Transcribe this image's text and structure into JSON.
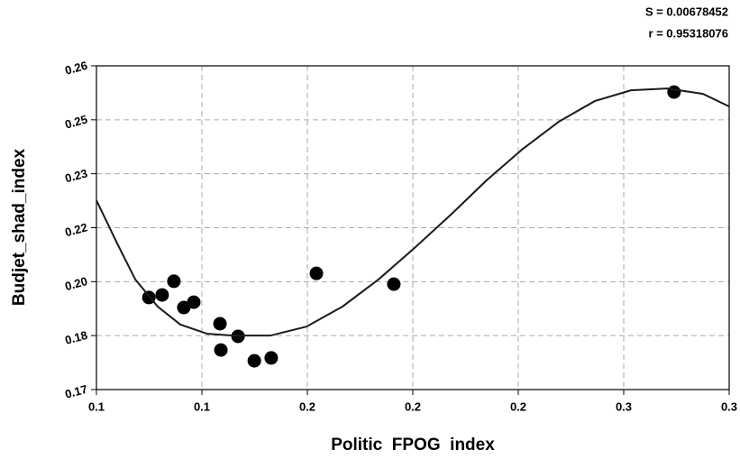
{
  "chart_data": {
    "type": "scatter",
    "xlabel": "Politic  FPOG  index",
    "ylabel": "Budjet_shad_index",
    "annotations": [
      "S = 0.00678452",
      "r = 0.95318076"
    ],
    "xlim": [
      0.1,
      0.31
    ],
    "ylim": [
      0.17,
      0.26
    ],
    "xticks": [
      0.1,
      {
        "value": 0.135,
        "label": "0.1"
      },
      {
        "value": 0.17,
        "label": "0.2"
      },
      {
        "value": 0.205,
        "label": "0.2"
      },
      {
        "value": 0.24,
        "label": "0.2"
      },
      {
        "value": 0.275,
        "label": "0.3"
      },
      {
        "value": 0.31,
        "label": "0.3"
      }
    ],
    "yticks": [
      {
        "value": 0.17,
        "label": "0.17"
      },
      {
        "value": 0.185,
        "label": "0.18"
      },
      {
        "value": 0.2,
        "label": "0.20"
      },
      {
        "value": 0.215,
        "label": "0.22"
      },
      {
        "value": 0.23,
        "label": "0.23"
      },
      {
        "value": 0.245,
        "label": "0.25"
      },
      {
        "value": 0.26,
        "label": "0.26"
      }
    ],
    "grid": true,
    "series": [
      {
        "color": "#000000",
        "style": "markers",
        "x": [
          0.1174,
          0.1218,
          0.1257,
          0.129,
          0.1323,
          0.141,
          0.1413,
          0.147,
          0.1524,
          0.158,
          0.173,
          0.1987,
          0.2917
        ],
        "values": [
          0.1956,
          0.1963,
          0.2001,
          0.1928,
          0.1943,
          0.1883,
          0.181,
          0.1848,
          0.178,
          0.1788,
          0.2023,
          0.1993,
          0.2527
        ]
      },
      {
        "color": "#1a1a1a",
        "style": "line",
        "x": [
          0.1,
          0.1069,
          0.1129,
          0.1203,
          0.1278,
          0.1368,
          0.1458,
          0.1577,
          0.1697,
          0.1817,
          0.1936,
          0.2056,
          0.2176,
          0.2295,
          0.2415,
          0.2535,
          0.2654,
          0.2774,
          0.2894,
          0.3013,
          0.31
        ],
        "values": [
          0.2226,
          0.2106,
          0.2006,
          0.1931,
          0.1881,
          0.1855,
          0.185,
          0.185,
          0.1875,
          0.1931,
          0.2006,
          0.2094,
          0.2186,
          0.2282,
          0.2369,
          0.2445,
          0.2502,
          0.2532,
          0.2537,
          0.2522,
          0.2487
        ]
      }
    ]
  }
}
